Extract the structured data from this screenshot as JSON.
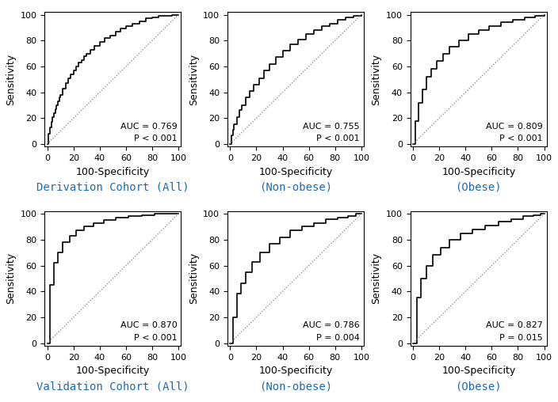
{
  "chart_data": [
    {
      "type": "step",
      "xlabel": "100-Specificity",
      "ylabel": "Sensitivity",
      "xlim": [
        -2,
        102
      ],
      "ylim": [
        -2,
        102
      ],
      "xticks": [
        0,
        20,
        40,
        60,
        80,
        100
      ],
      "yticks": [
        0,
        20,
        40,
        60,
        80,
        100
      ],
      "grid": false,
      "caption": "Derivation Cohort (All)",
      "caption_color": "#1E6BB0",
      "annotations": [
        "AUC = 0.769",
        "P < 0.001"
      ],
      "series": [
        {
          "type": "step",
          "color": "black",
          "line_style": "solid",
          "x": [
            0,
            1,
            2,
            3,
            4,
            5,
            6,
            7,
            8,
            9,
            10,
            12,
            14,
            16,
            18,
            20,
            22,
            24,
            26,
            28,
            30,
            33,
            36,
            40,
            44,
            48,
            52,
            56,
            60,
            65,
            70,
            75,
            80,
            85,
            90,
            95,
            100
          ],
          "values": [
            0,
            8,
            13,
            17,
            21,
            24,
            27,
            30,
            33,
            36,
            38,
            43,
            47,
            51,
            54,
            57,
            60,
            63,
            65,
            68,
            70,
            73,
            76,
            79,
            82,
            84,
            87,
            89,
            91,
            93,
            95,
            97,
            98,
            99,
            99,
            100,
            100
          ]
        },
        {
          "type": "line",
          "color": "gray",
          "line_style": "dotted",
          "x": [
            0,
            100
          ],
          "values": [
            0,
            100
          ]
        }
      ]
    },
    {
      "type": "step",
      "xlabel": "100-Specificity",
      "ylabel": "Sensitivity",
      "xlim": [
        -2,
        102
      ],
      "ylim": [
        -2,
        102
      ],
      "xticks": [
        0,
        20,
        40,
        60,
        80,
        100
      ],
      "yticks": [
        0,
        20,
        40,
        60,
        80,
        100
      ],
      "grid": false,
      "caption": "(Non-obese)",
      "caption_color": "#1E6BB0",
      "annotations": [
        "AUC = 0.755",
        "P < 0.001"
      ],
      "series": [
        {
          "type": "step",
          "color": "black",
          "line_style": "solid",
          "x": [
            0,
            1,
            2,
            3,
            5,
            7,
            9,
            12,
            15,
            18,
            22,
            26,
            30,
            35,
            40,
            46,
            52,
            58,
            64,
            70,
            76,
            82,
            88,
            94,
            100
          ],
          "values": [
            0,
            7,
            11,
            15,
            21,
            26,
            30,
            36,
            41,
            46,
            51,
            57,
            62,
            67,
            72,
            77,
            81,
            85,
            88,
            91,
            93,
            96,
            98,
            99,
            100
          ]
        },
        {
          "type": "line",
          "color": "gray",
          "line_style": "dotted",
          "x": [
            0,
            100
          ],
          "values": [
            0,
            100
          ]
        }
      ]
    },
    {
      "type": "step",
      "xlabel": "100-Specificity",
      "ylabel": "Sensitivity",
      "xlim": [
        -2,
        102
      ],
      "ylim": [
        -2,
        102
      ],
      "xticks": [
        0,
        20,
        40,
        60,
        80,
        100
      ],
      "yticks": [
        0,
        20,
        40,
        60,
        80,
        100
      ],
      "grid": false,
      "caption": "(Obese)",
      "caption_color": "#1E6BB0",
      "annotations": [
        "AUC = 0.809",
        "P < 0.001"
      ],
      "series": [
        {
          "type": "step",
          "color": "black",
          "line_style": "solid",
          "x": [
            0,
            2,
            4,
            7,
            10,
            14,
            18,
            23,
            28,
            35,
            42,
            50,
            58,
            67,
            76,
            85,
            93,
            100
          ],
          "values": [
            0,
            18,
            32,
            42,
            52,
            58,
            64,
            70,
            75,
            80,
            85,
            88,
            91,
            94,
            96,
            98,
            99,
            100
          ]
        },
        {
          "type": "line",
          "color": "gray",
          "line_style": "dotted",
          "x": [
            0,
            100
          ],
          "values": [
            0,
            100
          ]
        }
      ]
    },
    {
      "type": "step",
      "xlabel": "100-Specificity",
      "ylabel": "Sensitivity",
      "xlim": [
        -2,
        102
      ],
      "ylim": [
        -2,
        102
      ],
      "xticks": [
        0,
        20,
        40,
        60,
        80,
        100
      ],
      "yticks": [
        0,
        20,
        40,
        60,
        80,
        100
      ],
      "grid": false,
      "caption": "Validation Cohort (All)",
      "caption_color": "#1E6BB0",
      "annotations": [
        "AUC = 0.870",
        "P < 0.001"
      ],
      "series": [
        {
          "type": "step",
          "color": "black",
          "line_style": "solid",
          "x": [
            0,
            2,
            5,
            8,
            12,
            17,
            22,
            28,
            35,
            43,
            52,
            62,
            72,
            82,
            90,
            96,
            100
          ],
          "values": [
            0,
            45,
            62,
            70,
            78,
            83,
            87,
            90,
            93,
            95,
            97,
            98,
            99,
            100,
            100,
            100,
            100
          ]
        },
        {
          "type": "line",
          "color": "gray",
          "line_style": "dotted",
          "x": [
            0,
            100
          ],
          "values": [
            0,
            100
          ]
        }
      ]
    },
    {
      "type": "step",
      "xlabel": "100-Specificity",
      "ylabel": "Sensitivity",
      "xlim": [
        -2,
        102
      ],
      "ylim": [
        -2,
        102
      ],
      "xticks": [
        0,
        20,
        40,
        60,
        80,
        100
      ],
      "yticks": [
        0,
        20,
        40,
        60,
        80,
        100
      ],
      "grid": false,
      "caption": "(Non-obese)",
      "caption_color": "#1E6BB0",
      "annotations": [
        "AUC = 0.786",
        "P = 0.004"
      ],
      "series": [
        {
          "type": "step",
          "color": "black",
          "line_style": "solid",
          "x": [
            0,
            2,
            5,
            8,
            12,
            17,
            23,
            30,
            38,
            46,
            55,
            64,
            73,
            82,
            90,
            96,
            100
          ],
          "values": [
            0,
            20,
            38,
            46,
            55,
            63,
            70,
            77,
            82,
            87,
            90,
            93,
            96,
            97,
            98,
            100,
            100
          ]
        },
        {
          "type": "line",
          "color": "gray",
          "line_style": "dotted",
          "x": [
            0,
            100
          ],
          "values": [
            0,
            100
          ]
        }
      ]
    },
    {
      "type": "step",
      "xlabel": "100-Specificity",
      "ylabel": "Sensitivity",
      "xlim": [
        -2,
        102
      ],
      "ylim": [
        -2,
        102
      ],
      "xticks": [
        0,
        20,
        40,
        60,
        80,
        100
      ],
      "yticks": [
        0,
        20,
        40,
        60,
        80,
        100
      ],
      "grid": false,
      "caption": "(Obese)",
      "caption_color": "#1E6BB0",
      "annotations": [
        "AUC = 0.827",
        "P = 0.015"
      ],
      "series": [
        {
          "type": "step",
          "color": "black",
          "line_style": "solid",
          "x": [
            0,
            3,
            6,
            10,
            15,
            21,
            28,
            36,
            45,
            55,
            65,
            75,
            84,
            92,
            97,
            100
          ],
          "values": [
            0,
            35,
            50,
            60,
            68,
            74,
            80,
            85,
            88,
            91,
            94,
            96,
            98,
            99,
            100,
            100
          ]
        },
        {
          "type": "line",
          "color": "gray",
          "line_style": "dotted",
          "x": [
            0,
            100
          ],
          "values": [
            0,
            100
          ]
        }
      ]
    }
  ]
}
